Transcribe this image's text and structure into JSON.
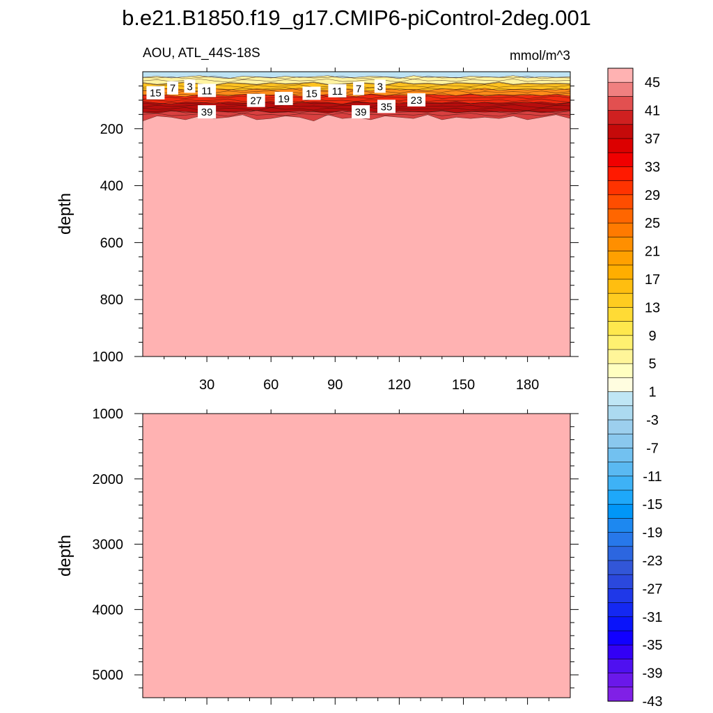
{
  "title": "b.e21.B1850.f19_g17.CMIP6-piControl-2deg.001",
  "chart_data": {
    "type": "heatmap",
    "variable_label": "AOU, ATL_44S-18S",
    "units_label": "mmol/m^3",
    "x_range": [
      0,
      200
    ],
    "x_ticks": [
      30,
      60,
      90,
      120,
      150,
      180
    ],
    "background_fill_value": 45,
    "upper_panel": {
      "ylabel": "depth",
      "y_range": [
        0,
        1000
      ],
      "y_ticks": [
        200,
        400,
        600,
        800,
        1000
      ],
      "y_reversed": true,
      "surface_band": [
        {
          "from_depth": 0,
          "to_depth": 18,
          "value": -3,
          "color": "#bde3f4"
        },
        {
          "from_depth": 18,
          "to_depth": 42,
          "value": 5,
          "color": "#fff3a0"
        },
        {
          "from_depth": 42,
          "to_depth": 62,
          "value": 13,
          "color": "#ffc21f"
        },
        {
          "from_depth": 62,
          "to_depth": 82,
          "value": 21,
          "color": "#ff8c1a"
        },
        {
          "from_depth": 82,
          "to_depth": 108,
          "value": 31,
          "color": "#ee2a10"
        },
        {
          "from_depth": 108,
          "to_depth": 140,
          "value": 39,
          "color": "#b80d0d"
        },
        {
          "from_depth": 140,
          "to_depth": 160,
          "value": 43,
          "color": "#d84040"
        }
      ],
      "contour_labels": [
        {
          "x": 6,
          "depth": 75,
          "text": "15"
        },
        {
          "x": 14,
          "depth": 58,
          "text": "7"
        },
        {
          "x": 22,
          "depth": 52,
          "text": "3"
        },
        {
          "x": 30,
          "depth": 67,
          "text": "11"
        },
        {
          "x": 30,
          "depth": 142,
          "text": "39"
        },
        {
          "x": 53,
          "depth": 102,
          "text": "27"
        },
        {
          "x": 66,
          "depth": 95,
          "text": "19"
        },
        {
          "x": 79,
          "depth": 77,
          "text": "15"
        },
        {
          "x": 91,
          "depth": 68,
          "text": "11"
        },
        {
          "x": 101,
          "depth": 60,
          "text": "7"
        },
        {
          "x": 111,
          "depth": 52,
          "text": "3"
        },
        {
          "x": 102,
          "depth": 142,
          "text": "39"
        },
        {
          "x": 114,
          "depth": 123,
          "text": "35"
        },
        {
          "x": 128,
          "depth": 100,
          "text": "23"
        }
      ]
    },
    "lower_panel": {
      "ylabel": "depth",
      "y_range": [
        1000,
        5350
      ],
      "y_ticks": [
        1000,
        2000,
        3000,
        4000,
        5000
      ],
      "y_reversed": true
    },
    "colorbar": {
      "labels": [
        "45",
        "41",
        "37",
        "33",
        "29",
        "25",
        "21",
        "17",
        "13",
        "9",
        "5",
        "1",
        "-3",
        "-7",
        "-11",
        "-15",
        "-19",
        "-23",
        "-27",
        "-31",
        "-35",
        "-39",
        "-43"
      ],
      "colors": [
        "#ffb2b2",
        "#f08080",
        "#e25050",
        "#cf2020",
        "#c50a0a",
        "#dc0000",
        "#f00000",
        "#ff1a00",
        "#ff3300",
        "#ff4d00",
        "#ff6600",
        "#ff7a00",
        "#ff8f00",
        "#ffa000",
        "#ffae00",
        "#ffbe10",
        "#ffcc20",
        "#ffdb35",
        "#ffe84d",
        "#fff170",
        "#fff599",
        "#ffffc0",
        "#fffde0",
        "#bfe6f5",
        "#acdaf0",
        "#9ccfee",
        "#8ac8ee",
        "#72c1f0",
        "#5ab9f2",
        "#3eb2f6",
        "#1ea8fa",
        "#0096f8",
        "#1d88f0",
        "#2778ea",
        "#2c66e0",
        "#3256d8",
        "#2b48dd",
        "#1f38e8",
        "#1428f2",
        "#0a14fa",
        "#1100ff",
        "#3300f5",
        "#4f10f0",
        "#6a18ea",
        "#8020e6"
      ]
    }
  }
}
